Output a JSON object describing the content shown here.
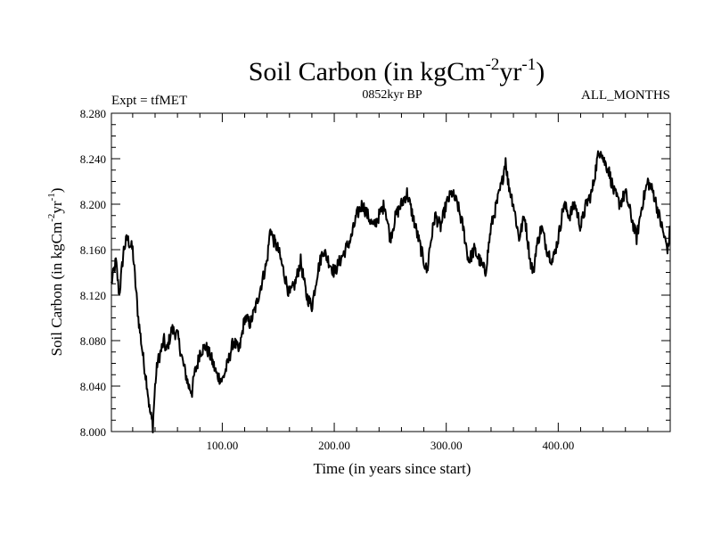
{
  "chart_data": {
    "type": "line",
    "title": {
      "main": "Soil Carbon (in kgCm",
      "sup1": "-2",
      "mid": "yr",
      "sup2": "-1",
      "end": ")"
    },
    "header": {
      "left": "Expt = tfMET",
      "center": "0852kyr BP",
      "right": "ALL_MONTHS"
    },
    "xlabel": "Time (in years since start)",
    "ylabel": {
      "main": "Soil Carbon (in kgCm",
      "sup1": "-2",
      "mid": "yr",
      "sup2": "-1",
      "end": ")"
    },
    "xlim": [
      1,
      500
    ],
    "ylim": [
      8.0,
      8.28
    ],
    "x_major_ticks": [
      100,
      200,
      300,
      400
    ],
    "x_tick_labels": [
      "100.00",
      "200.00",
      "300.00",
      "400.00"
    ],
    "y_major_ticks": [
      8.0,
      8.04,
      8.08,
      8.12,
      8.16,
      8.2,
      8.24,
      8.28
    ],
    "y_tick_labels": [
      "8.000",
      "8.040",
      "8.080",
      "8.120",
      "8.160",
      "8.200",
      "8.240",
      "8.280"
    ],
    "line_color": "#000000",
    "series": [
      {
        "name": "Soil Carbon",
        "x": [
          1,
          5,
          8,
          12,
          15,
          20,
          25,
          30,
          33,
          35,
          37,
          38,
          40,
          42,
          45,
          48,
          50,
          55,
          60,
          65,
          70,
          73,
          75,
          78,
          80,
          85,
          90,
          95,
          100,
          105,
          110,
          115,
          120,
          125,
          130,
          135,
          140,
          143,
          145,
          150,
          155,
          160,
          165,
          170,
          175,
          180,
          185,
          190,
          195,
          200,
          205,
          210,
          215,
          220,
          225,
          230,
          235,
          240,
          245,
          250,
          255,
          260,
          265,
          270,
          275,
          280,
          283,
          285,
          290,
          295,
          300,
          305,
          310,
          315,
          320,
          325,
          330,
          335,
          340,
          345,
          350,
          353,
          355,
          360,
          365,
          370,
          375,
          378,
          380,
          385,
          390,
          395,
          400,
          405,
          410,
          415,
          420,
          425,
          430,
          435,
          438,
          440,
          445,
          450,
          455,
          460,
          465,
          470,
          475,
          480,
          485,
          490,
          495,
          498,
          500
        ],
        "y": [
          8.13,
          8.15,
          8.12,
          8.16,
          8.17,
          8.16,
          8.1,
          8.06,
          8.04,
          8.02,
          8.01,
          8.005,
          8.04,
          8.06,
          8.07,
          8.08,
          8.07,
          8.09,
          8.085,
          8.06,
          8.04,
          8.035,
          8.05,
          8.06,
          8.07,
          8.075,
          8.065,
          8.05,
          8.045,
          8.06,
          8.08,
          8.07,
          8.1,
          8.095,
          8.11,
          8.13,
          8.15,
          8.18,
          8.17,
          8.16,
          8.14,
          8.12,
          8.13,
          8.15,
          8.12,
          8.11,
          8.14,
          8.16,
          8.15,
          8.14,
          8.15,
          8.16,
          8.17,
          8.19,
          8.2,
          8.19,
          8.18,
          8.19,
          8.2,
          8.17,
          8.19,
          8.2,
          8.21,
          8.19,
          8.17,
          8.15,
          8.14,
          8.16,
          8.19,
          8.18,
          8.2,
          8.21,
          8.2,
          8.18,
          8.15,
          8.16,
          8.15,
          8.14,
          8.18,
          8.2,
          8.22,
          8.24,
          8.22,
          8.2,
          8.17,
          8.19,
          8.15,
          8.14,
          8.16,
          8.18,
          8.16,
          8.15,
          8.17,
          8.2,
          8.19,
          8.2,
          8.18,
          8.2,
          8.21,
          8.24,
          8.25,
          8.24,
          8.23,
          8.21,
          8.2,
          8.21,
          8.19,
          8.17,
          8.2,
          8.22,
          8.21,
          8.19,
          8.17,
          8.16,
          8.18
        ]
      }
    ]
  }
}
